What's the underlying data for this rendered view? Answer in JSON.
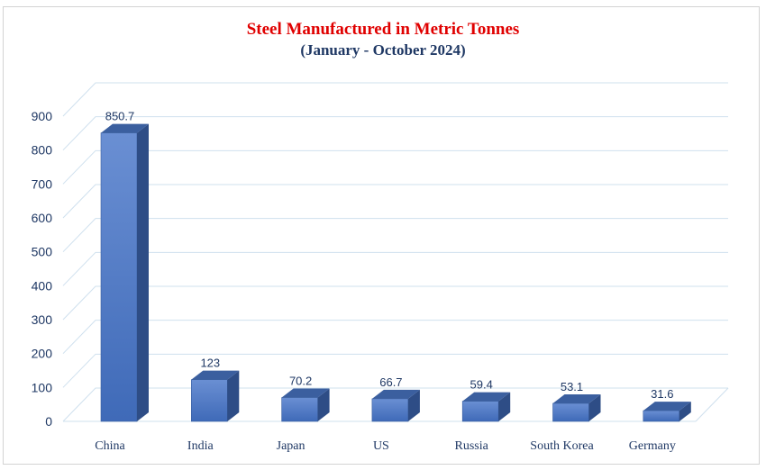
{
  "chart_data": {
    "type": "bar",
    "title": "Steel Manufactured in Metric Tonnes",
    "subtitle": "(January - October 2024)",
    "xlabel": "",
    "ylabel": "",
    "categories": [
      "China",
      "India",
      "Japan",
      "US",
      "Russia",
      "South Korea",
      "Germany"
    ],
    "values": [
      850.7,
      123,
      70.2,
      66.7,
      59.4,
      53.1,
      31.6
    ],
    "data_labels": [
      "850.7",
      "123",
      "70.2",
      "66.7",
      "59.4",
      "53.1",
      "31.6"
    ],
    "yticks": [
      0,
      100,
      200,
      300,
      400,
      500,
      600,
      700,
      800,
      900
    ],
    "ylim": [
      0,
      900
    ],
    "grid": true,
    "legend": "none",
    "style": "3d-column",
    "colors": {
      "title": "#e00000",
      "subtitle": "#1f3864",
      "bar_front": "#4472c4",
      "bar_side": "#2e4d86",
      "bar_top": "#5b84cf",
      "grid": "#cfe0ee",
      "text": "#1f3864"
    }
  }
}
